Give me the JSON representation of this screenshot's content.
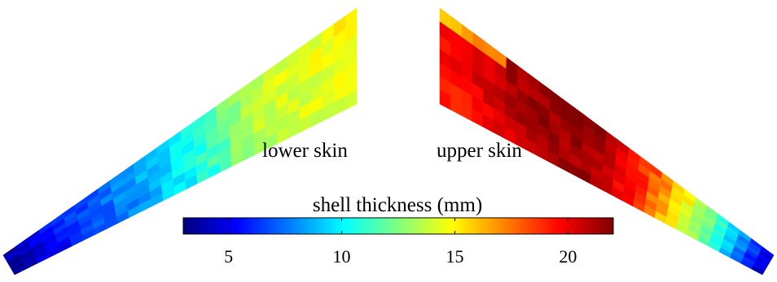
{
  "chart_data": {
    "type": "heatmap",
    "title": "",
    "panels": [
      {
        "name": "lower skin",
        "root_thickness_mm": 15.2,
        "tip_thickness_mm": 3.8,
        "hot_spot_thickness_mm": 16.3
      },
      {
        "name": "upper skin",
        "root_thickness_mm": 19.6,
        "peak_thickness_mm": 22.0,
        "tip_thickness_mm": 4.5
      }
    ],
    "colorbar": {
      "label": "shell thickness (mm)",
      "range": [
        3,
        22
      ],
      "ticks": [
        5,
        10,
        15,
        20
      ],
      "tick_labels": [
        "5",
        "10",
        "15",
        "20"
      ],
      "colormap": "jet"
    }
  }
}
